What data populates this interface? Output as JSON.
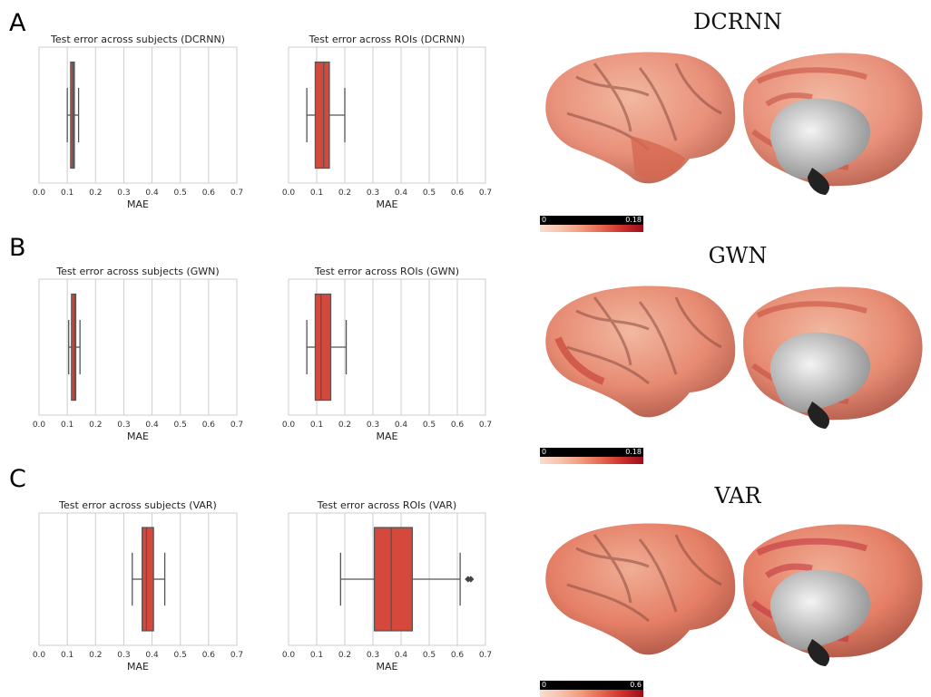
{
  "panels": [
    {
      "letter": "A",
      "model": "DCRNN",
      "cbar_min": "0",
      "cbar_max": "0.18"
    },
    {
      "letter": "B",
      "model": "GWN",
      "cbar_min": "0",
      "cbar_max": "0.18"
    },
    {
      "letter": "C",
      "model": "VAR",
      "cbar_min": "0",
      "cbar_max": "0.6"
    }
  ],
  "colors": {
    "box_fill": "#d5493c",
    "box_edge": "#555555",
    "grid": "#cccccc"
  },
  "chart_data": [
    {
      "type": "box",
      "title": "Test error across subjects (DCRNN)",
      "xlabel": "MAE",
      "xlim": [
        0,
        0.7
      ],
      "xticks": [
        "0.0",
        "0.1",
        "0.2",
        "0.3",
        "0.4",
        "0.5",
        "0.6",
        "0.7"
      ],
      "grid": true,
      "box": {
        "whislo": 0.1,
        "q1": 0.112,
        "median": 0.12,
        "q3": 0.125,
        "whishi": 0.14,
        "fliers": []
      }
    },
    {
      "type": "box",
      "title": "Test error across ROIs (DCRNN)",
      "xlabel": "MAE",
      "xlim": [
        0,
        0.7
      ],
      "xticks": [
        "0.0",
        "0.1",
        "0.2",
        "0.3",
        "0.4",
        "0.5",
        "0.6",
        "0.7"
      ],
      "grid": true,
      "box": {
        "whislo": 0.065,
        "q1": 0.095,
        "median": 0.125,
        "q3": 0.145,
        "whishi": 0.2,
        "fliers": []
      }
    },
    {
      "type": "box",
      "title": "Test error across subjects (GWN)",
      "xlabel": "MAE",
      "xlim": [
        0,
        0.7
      ],
      "xticks": [
        "0.0",
        "0.1",
        "0.2",
        "0.3",
        "0.4",
        "0.5",
        "0.6",
        "0.7"
      ],
      "grid": true,
      "box": {
        "whislo": 0.105,
        "q1": 0.115,
        "median": 0.125,
        "q3": 0.13,
        "whishi": 0.145,
        "fliers": []
      }
    },
    {
      "type": "box",
      "title": "Test error across ROIs (GWN)",
      "xlabel": "MAE",
      "xlim": [
        0,
        0.7
      ],
      "xticks": [
        "0.0",
        "0.1",
        "0.2",
        "0.3",
        "0.4",
        "0.5",
        "0.6",
        "0.7"
      ],
      "grid": true,
      "box": {
        "whislo": 0.065,
        "q1": 0.095,
        "median": 0.115,
        "q3": 0.15,
        "whishi": 0.205,
        "fliers": []
      }
    },
    {
      "type": "box",
      "title": "Test error across subjects (VAR)",
      "xlabel": "MAE",
      "xlim": [
        0,
        0.7
      ],
      "xticks": [
        "0.0",
        "0.1",
        "0.2",
        "0.3",
        "0.4",
        "0.5",
        "0.6",
        "0.7"
      ],
      "grid": true,
      "box": {
        "whislo": 0.33,
        "q1": 0.365,
        "median": 0.38,
        "q3": 0.405,
        "whishi": 0.445,
        "fliers": []
      }
    },
    {
      "type": "box",
      "title": "Test error across ROIs (VAR)",
      "xlabel": "MAE",
      "xlim": [
        0,
        0.7
      ],
      "xticks": [
        "0.0",
        "0.1",
        "0.2",
        "0.3",
        "0.4",
        "0.5",
        "0.6",
        "0.7"
      ],
      "grid": true,
      "box": {
        "whislo": 0.185,
        "q1": 0.305,
        "median": 0.365,
        "q3": 0.44,
        "whishi": 0.61,
        "fliers": [
          0.638,
          0.648
        ]
      }
    }
  ]
}
